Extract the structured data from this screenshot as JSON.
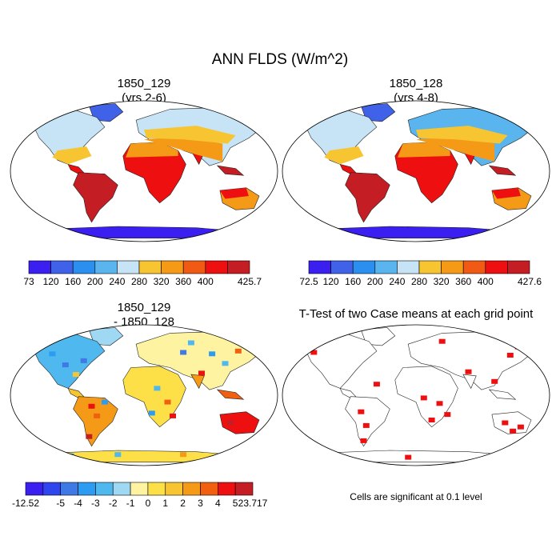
{
  "main_title": "ANN FLDS (W/m^2)",
  "panels": [
    {
      "id": "p1",
      "title_line1": "1850_129",
      "title_line2": "(yrs 2-6)"
    },
    {
      "id": "p2",
      "title_line1": "1850_128",
      "title_line2": "(yrs 4-8)"
    },
    {
      "id": "p3",
      "title_line1": "1850_129",
      "title_line2": "- 1850_128"
    },
    {
      "id": "p4",
      "title_line1": "T-Test of two Case means at each grid point",
      "title_line2": ""
    }
  ],
  "note": "Cells are significant at 0.1 level",
  "chart_data": [
    {
      "type": "heatmap",
      "title": "1850_129 (yrs 2-6)",
      "colorbar": {
        "labels": [
          "73",
          "120",
          "160",
          "200",
          "240",
          "280",
          "320",
          "360",
          "400",
          "425.7"
        ],
        "colors": [
          "#3a1ff0",
          "#3f62e8",
          "#2b8ff0",
          "#5ab4ee",
          "#c6e4f6",
          "#f7c531",
          "#f59a16",
          "#f05a14",
          "#ee1010",
          "#c41e24"
        ]
      }
    },
    {
      "type": "heatmap",
      "title": "1850_128 (yrs 4-8)",
      "colorbar": {
        "labels": [
          "72.5",
          "120",
          "160",
          "200",
          "240",
          "280",
          "320",
          "360",
          "400",
          "427.6"
        ],
        "colors": [
          "#3a1ff0",
          "#3f62e8",
          "#2b8ff0",
          "#5ab4ee",
          "#c6e4f6",
          "#f7c531",
          "#f59a16",
          "#f05a14",
          "#ee1010",
          "#c41e24"
        ]
      }
    },
    {
      "type": "heatmap",
      "title": "1850_129 - 1850_128",
      "colorbar": {
        "labels": [
          "-12.52",
          "-5",
          "-4",
          "-3",
          "-2",
          "-1",
          "0",
          "1",
          "2",
          "3",
          "4",
          "5",
          "23.717"
        ],
        "colors": [
          "#3a1ff0",
          "#2f46ee",
          "#3f79e6",
          "#2b9cf2",
          "#4fb8ee",
          "#9ed8f3",
          "#fef3a0",
          "#fde047",
          "#f7c531",
          "#f59a16",
          "#f06010",
          "#ee1010",
          "#c41e24"
        ]
      }
    },
    {
      "type": "heatmap",
      "title": "T-Test of two Case means at each grid point",
      "significance_level": 0.1,
      "significant_color": "#ee1010"
    }
  ]
}
